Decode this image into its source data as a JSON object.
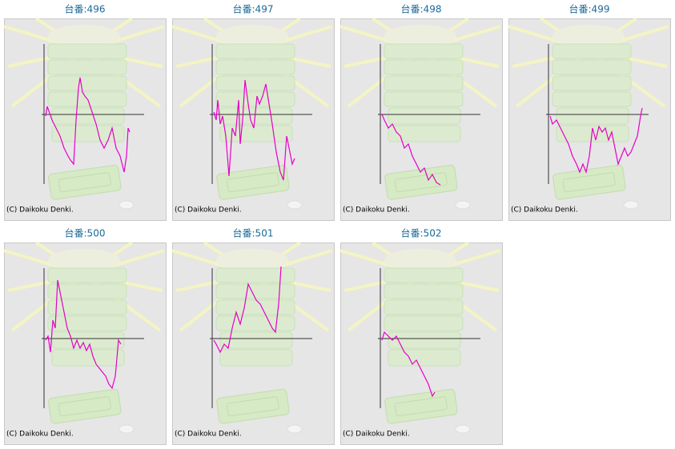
{
  "chart_data": [
    {
      "type": "line",
      "title": "台番:496",
      "copyright": "(C) Daikoku Denki.",
      "color": "#e600c8",
      "xlim": [
        0,
        122
      ],
      "ylim": [
        -90,
        90
      ],
      "x": [
        2,
        4,
        10,
        15,
        20,
        25,
        30,
        33,
        37,
        40,
        43,
        45,
        48,
        51,
        55,
        60,
        65,
        70,
        75,
        80,
        85,
        90,
        95,
        100,
        103,
        105,
        107
      ],
      "values": [
        -2,
        10,
        -7,
        -17,
        -27,
        -42,
        -52,
        -57,
        -62,
        -7,
        33,
        46,
        28,
        23,
        18,
        3,
        -12,
        -32,
        -42,
        -32,
        -17,
        -42,
        -52,
        -72,
        -52,
        -17,
        -22
      ]
    },
    {
      "type": "line",
      "title": "台番:497",
      "copyright": "(C) Daikoku Denki.",
      "color": "#e600c8",
      "xlim": [
        0,
        122
      ],
      "ylim": [
        -90,
        90
      ],
      "x": [
        2,
        5,
        7,
        10,
        13,
        17,
        21,
        25,
        29,
        33,
        35,
        38,
        41,
        45,
        48,
        52,
        56,
        59,
        63,
        67,
        71,
        75,
        80,
        85,
        89,
        93,
        97,
        100,
        103
      ],
      "values": [
        3,
        -7,
        18,
        -12,
        -2,
        -27,
        -77,
        -17,
        -27,
        18,
        -37,
        -7,
        43,
        13,
        -7,
        -17,
        23,
        13,
        23,
        38,
        13,
        -12,
        -47,
        -72,
        -82,
        -27,
        -47,
        -62,
        -55
      ]
    },
    {
      "type": "line",
      "title": "台番:498",
      "copyright": "(C) Daikoku Denki.",
      "color": "#e600c8",
      "xlim": [
        0,
        122
      ],
      "ylim": [
        -90,
        90
      ],
      "x": [
        2,
        5,
        10,
        15,
        20,
        25,
        30,
        35,
        40,
        45,
        50,
        55,
        60,
        65,
        70,
        75
      ],
      "values": [
        0,
        -7,
        -17,
        -12,
        -22,
        -27,
        -42,
        -37,
        -52,
        -62,
        -72,
        -67,
        -82,
        -75,
        -85,
        -88
      ]
    },
    {
      "type": "line",
      "title": "台番:499",
      "copyright": "(C) Daikoku Denki.",
      "color": "#e600c8",
      "xlim": [
        0,
        122
      ],
      "ylim": [
        -90,
        90
      ],
      "x": [
        2,
        5,
        10,
        15,
        20,
        25,
        30,
        35,
        39,
        43,
        47,
        51,
        55,
        59,
        63,
        67,
        71,
        75,
        79,
        83,
        87,
        91,
        95,
        99,
        103,
        107,
        111,
        115,
        117
      ],
      "values": [
        -2,
        -12,
        -7,
        -17,
        -27,
        -37,
        -52,
        -62,
        -72,
        -62,
        -72,
        -52,
        -17,
        -32,
        -15,
        -22,
        -17,
        -32,
        -22,
        -42,
        -62,
        -52,
        -42,
        -52,
        -47,
        -37,
        -27,
        -2,
        8
      ]
    },
    {
      "type": "line",
      "title": "台番:500",
      "copyright": "(C) Daikoku Denki.",
      "color": "#e600c8",
      "xlim": [
        0,
        122
      ],
      "ylim": [
        -90,
        90
      ],
      "x": [
        2,
        5,
        8,
        11,
        14,
        17,
        21,
        25,
        29,
        33,
        37,
        41,
        45,
        49,
        53,
        57,
        61,
        65,
        69,
        73,
        77,
        81,
        85,
        89,
        93,
        96
      ],
      "values": [
        -2,
        3,
        -17,
        23,
        13,
        73,
        53,
        33,
        13,
        3,
        -12,
        -2,
        -12,
        -5,
        -15,
        -7,
        -22,
        -32,
        -37,
        -42,
        -47,
        -57,
        -62,
        -47,
        -2,
        -7
      ]
    },
    {
      "type": "line",
      "title": "台番:501",
      "copyright": "(C) Daikoku Denki.",
      "color": "#e600c8",
      "xlim": [
        0,
        122
      ],
      "ylim": [
        -90,
        90
      ],
      "x": [
        2,
        5,
        10,
        15,
        20,
        25,
        30,
        35,
        40,
        45,
        50,
        55,
        60,
        65,
        70,
        75,
        79,
        83,
        86
      ],
      "values": [
        -2,
        -7,
        -17,
        -7,
        -12,
        13,
        33,
        18,
        38,
        68,
        58,
        48,
        43,
        33,
        23,
        13,
        8,
        43,
        90
      ]
    },
    {
      "type": "line",
      "title": "台番:502",
      "copyright": "(C) Daikoku Denki.",
      "color": "#e600c8",
      "xlim": [
        0,
        122
      ],
      "ylim": [
        -90,
        90
      ],
      "x": [
        2,
        5,
        10,
        15,
        20,
        25,
        30,
        35,
        40,
        45,
        50,
        55,
        60,
        65,
        68
      ],
      "values": [
        -2,
        8,
        3,
        -2,
        3,
        -7,
        -17,
        -22,
        -32,
        -27,
        -37,
        -47,
        -57,
        -72,
        -67
      ]
    }
  ]
}
